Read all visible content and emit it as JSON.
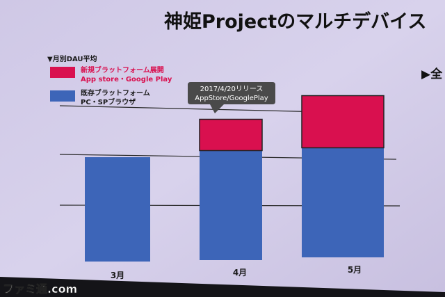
{
  "slide": {
    "title": "神姫Projectのマルチデバイス",
    "right_text": "▶全",
    "watermark": "ファミ通.com"
  },
  "colors": {
    "screen": "#d3cde9",
    "new_platform": "#d9104f",
    "browser": "#3d65b8",
    "text": "#1a1a1a",
    "dark_frame": "#141418"
  },
  "chart_data": {
    "type": "bar",
    "title": "▼月別DAU平均",
    "categories": [
      "3月",
      "4月",
      "5月"
    ],
    "series": [
      {
        "name": "既存ブラットフォーム PC・SPブラウザ",
        "color": "#3d65b8",
        "values": [
          2.0,
          2.1,
          2.1
        ]
      },
      {
        "name": "新規ブラットフォーム展開 App store・Google Play",
        "color": "#d9104f",
        "values": [
          0,
          0.6,
          1.0
        ]
      }
    ],
    "stacked": true,
    "grid": true,
    "legend": "top-left",
    "annotation": {
      "text_line1": "2017/4/20リリース",
      "text_line2": "AppStore/GooglePlay",
      "category": "4月"
    },
    "legend_items": [
      {
        "line1": "新規ブラットフォーム展開",
        "line2": "App store・Google Play",
        "color": "#d9104f"
      },
      {
        "line1": "既存ブラットフォーム",
        "line2": "PC・SPブラウザ",
        "color": "#3d65b8"
      }
    ]
  }
}
